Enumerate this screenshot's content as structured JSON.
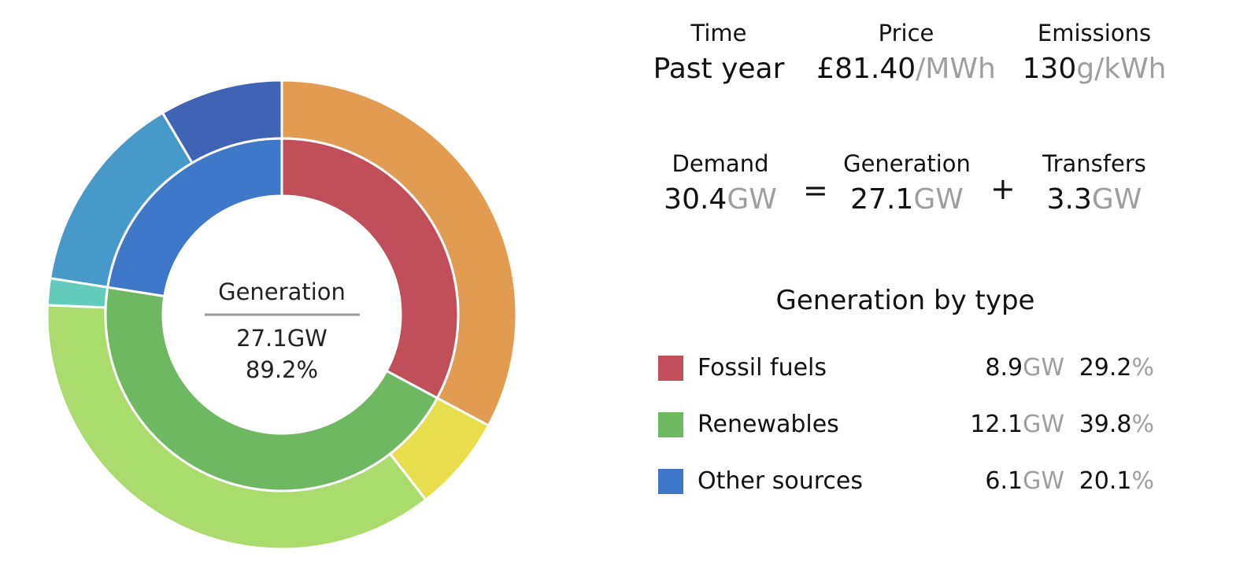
{
  "stats": {
    "time": {
      "label": "Time",
      "value": "Past year"
    },
    "price": {
      "label": "Price",
      "value": "£81.40",
      "unit": "/MWh"
    },
    "emissions": {
      "label": "Emissions",
      "value": "130",
      "unit": "g/kWh"
    },
    "demand": {
      "label": "Demand",
      "value": "30.4",
      "unit": "GW"
    },
    "generation": {
      "label": "Generation",
      "value": "27.1",
      "unit": "GW"
    },
    "transfers": {
      "label": "Transfers",
      "value": "3.3",
      "unit": "GW"
    },
    "equals": "=",
    "plus": "+"
  },
  "legend": {
    "title": "Generation by type",
    "items": [
      {
        "name": "Fossil fuels",
        "gw": "8.9",
        "gw_unit": "GW",
        "pct": "29.2",
        "pct_unit": "%",
        "color": "#c04f5a"
      },
      {
        "name": "Renewables",
        "gw": "12.1",
        "gw_unit": "GW",
        "pct": "39.8",
        "pct_unit": "%",
        "color": "#6fb862"
      },
      {
        "name": "Other sources",
        "gw": "6.1",
        "gw_unit": "GW",
        "pct": "20.1",
        "pct_unit": "%",
        "color": "#3f78c8"
      }
    ]
  },
  "chart_data": {
    "type": "pie",
    "center": {
      "title": "Generation",
      "value": "27.1GW",
      "percent": "89.2%"
    },
    "inner": [
      {
        "name": "Fossil fuels",
        "value": 8.9,
        "color": "#c04f5a"
      },
      {
        "name": "Renewables",
        "value": 12.1,
        "color": "#6fb862"
      },
      {
        "name": "Other sources",
        "value": 6.1,
        "color": "#3f78c8"
      }
    ],
    "outer": [
      {
        "value": 8.9,
        "color": "#e29c52"
      },
      {
        "value": 1.8,
        "color": "#e8dd4c"
      },
      {
        "value": 9.8,
        "color": "#a9dc6c"
      },
      {
        "value": 0.5,
        "color": "#62cbbb"
      },
      {
        "value": 3.8,
        "color": "#4699c9"
      },
      {
        "value": 2.3,
        "color": "#3f64b5"
      }
    ]
  }
}
